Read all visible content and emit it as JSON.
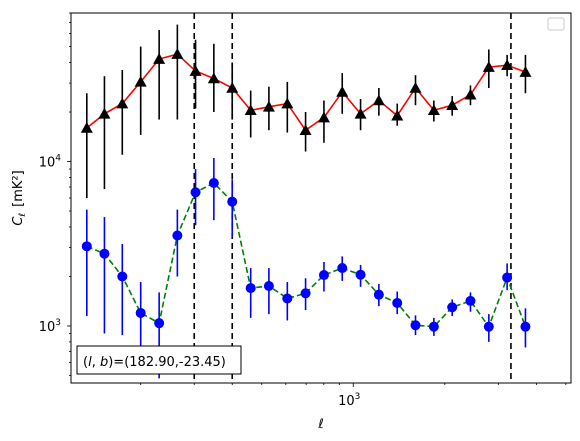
{
  "chart_data": {
    "type": "line",
    "title": "",
    "xlabel": "ℓ",
    "ylabel_main": "C",
    "ylabel_sub": "ℓ",
    "ylabel_unit": "[mK²]",
    "xscale": "log",
    "yscale": "log",
    "xlim": [
      118,
      5200
    ],
    "ylim": [
      450,
      80000
    ],
    "x_major_ticks": [
      {
        "value": 1000,
        "label_base": "10",
        "label_exp": "3"
      }
    ],
    "y_major_ticks": [
      {
        "value": 1000,
        "label_base": "10",
        "label_exp": "3"
      },
      {
        "value": 10000,
        "label_base": "10",
        "label_exp": "4"
      }
    ],
    "grid": false,
    "legend": {
      "placement": "top-right",
      "entries": []
    },
    "annotation": "(l, b)=(182.90,-23.45)",
    "annotation_parts": {
      "l": "l",
      "b": "b",
      "prefix": "(",
      "sep": ", ",
      "suffix": ")=(182.90,-23.45)"
    },
    "vlines": [
      {
        "x": 300,
        "style": "dashed",
        "color": "#000000"
      },
      {
        "x": 400,
        "style": "dashed",
        "color": "#000000"
      },
      {
        "x": 3300,
        "style": "dashed",
        "color": "#000000"
      }
    ],
    "series": [
      {
        "marker": "triangle",
        "color": "#ff0000",
        "marker_color": "#000000",
        "errorbar_color": "#000000",
        "linestyle": "solid",
        "points": [
          {
            "x": 133,
            "y": 16000,
            "lo": 6000,
            "hi": 26000
          },
          {
            "x": 152,
            "y": 19500,
            "lo": 6800,
            "hi": 33000
          },
          {
            "x": 174,
            "y": 22500,
            "lo": 11000,
            "hi": 36000
          },
          {
            "x": 200,
            "y": 30500,
            "lo": 14500,
            "hi": 50000
          },
          {
            "x": 230,
            "y": 42000,
            "lo": 18000,
            "hi": 63000
          },
          {
            "x": 264,
            "y": 45000,
            "lo": 18000,
            "hi": 68000
          },
          {
            "x": 303,
            "y": 35500,
            "lo": 21000,
            "hi": 55000
          },
          {
            "x": 348,
            "y": 32000,
            "lo": 20000,
            "hi": 52000
          },
          {
            "x": 400,
            "y": 28000,
            "lo": 18000,
            "hi": 40000
          },
          {
            "x": 460,
            "y": 20500,
            "lo": 14000,
            "hi": 27000
          },
          {
            "x": 528,
            "y": 21500,
            "lo": 15500,
            "hi": 28500
          },
          {
            "x": 607,
            "y": 22500,
            "lo": 15000,
            "hi": 30500
          },
          {
            "x": 697,
            "y": 15500,
            "lo": 11500,
            "hi": 20000
          },
          {
            "x": 801,
            "y": 18500,
            "lo": 13000,
            "hi": 23500
          },
          {
            "x": 920,
            "y": 26500,
            "lo": 19500,
            "hi": 34500
          },
          {
            "x": 1057,
            "y": 19500,
            "lo": 15500,
            "hi": 24000
          },
          {
            "x": 1214,
            "y": 23500,
            "lo": 19000,
            "hi": 28000
          },
          {
            "x": 1395,
            "y": 19000,
            "lo": 16500,
            "hi": 22500
          },
          {
            "x": 1602,
            "y": 28000,
            "lo": 22000,
            "hi": 33500
          },
          {
            "x": 1841,
            "y": 20500,
            "lo": 17500,
            "hi": 23500
          },
          {
            "x": 2115,
            "y": 22000,
            "lo": 19000,
            "hi": 25000
          },
          {
            "x": 2429,
            "y": 25500,
            "lo": 22000,
            "hi": 29000
          },
          {
            "x": 2791,
            "y": 37500,
            "lo": 28000,
            "hi": 48000
          },
          {
            "x": 3206,
            "y": 38500,
            "lo": 33000,
            "hi": 44500
          },
          {
            "x": 3683,
            "y": 35000,
            "lo": 26000,
            "hi": 44500
          }
        ]
      },
      {
        "marker": "circle",
        "color": "#008000",
        "marker_color": "#0000ff",
        "errorbar_color": "#0000ff",
        "linestyle": "dashed",
        "points": [
          {
            "x": 133,
            "y": 3050,
            "lo": 1150,
            "hi": 5100
          },
          {
            "x": 152,
            "y": 2750,
            "lo": 900,
            "hi": 4600
          },
          {
            "x": 174,
            "y": 2000,
            "lo": 880,
            "hi": 3150
          },
          {
            "x": 200,
            "y": 1200,
            "lo": 560,
            "hi": 1850
          },
          {
            "x": 230,
            "y": 1040,
            "lo": 480,
            "hi": 1600
          },
          {
            "x": 264,
            "y": 3550,
            "lo": 2000,
            "hi": 5100
          },
          {
            "x": 303,
            "y": 6500,
            "lo": 4100,
            "hi": 9000
          },
          {
            "x": 348,
            "y": 7400,
            "lo": 4400,
            "hi": 10500
          },
          {
            "x": 400,
            "y": 5700,
            "lo": 3500,
            "hi": 7800
          },
          {
            "x": 460,
            "y": 1700,
            "lo": 1120,
            "hi": 2250
          },
          {
            "x": 528,
            "y": 1750,
            "lo": 1180,
            "hi": 2250
          },
          {
            "x": 607,
            "y": 1470,
            "lo": 1080,
            "hi": 1850
          },
          {
            "x": 697,
            "y": 1580,
            "lo": 1250,
            "hi": 1950
          },
          {
            "x": 801,
            "y": 2040,
            "lo": 1620,
            "hi": 2450
          },
          {
            "x": 920,
            "y": 2250,
            "lo": 1880,
            "hi": 2650
          },
          {
            "x": 1057,
            "y": 2050,
            "lo": 1730,
            "hi": 2350
          },
          {
            "x": 1214,
            "y": 1550,
            "lo": 1320,
            "hi": 1800
          },
          {
            "x": 1395,
            "y": 1380,
            "lo": 1180,
            "hi": 1620
          },
          {
            "x": 1602,
            "y": 1010,
            "lo": 880,
            "hi": 1160
          },
          {
            "x": 1841,
            "y": 990,
            "lo": 870,
            "hi": 1120
          },
          {
            "x": 2115,
            "y": 1300,
            "lo": 1150,
            "hi": 1450
          },
          {
            "x": 2429,
            "y": 1420,
            "lo": 1220,
            "hi": 1600
          },
          {
            "x": 2791,
            "y": 990,
            "lo": 800,
            "hi": 1180
          },
          {
            "x": 3206,
            "y": 1970,
            "lo": 1650,
            "hi": 2400
          },
          {
            "x": 3683,
            "y": 990,
            "lo": 740,
            "hi": 1280
          }
        ]
      }
    ]
  }
}
